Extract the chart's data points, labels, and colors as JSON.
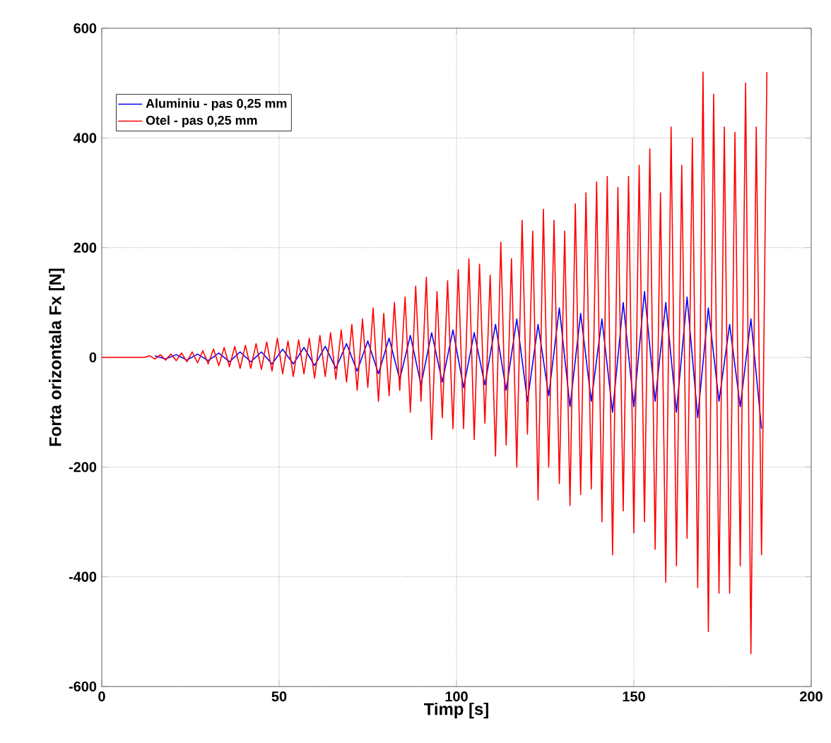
{
  "chart_data": {
    "type": "line",
    "xlabel": "Timp [s]",
    "ylabel": "Forta orizontala Fx [N]",
    "xlim": [
      0,
      200
    ],
    "ylim": [
      -600,
      600
    ],
    "xticks": [
      0,
      50,
      100,
      150,
      200
    ],
    "yticks": [
      -600,
      -400,
      -200,
      0,
      200,
      400,
      600
    ],
    "grid": true,
    "legend": "top left",
    "marker": "none",
    "line_style": "solid",
    "series": [
      {
        "name": "Aluminiu - pas 0,25 mm",
        "color": "#0000ff",
        "x": [
          15,
          18,
          21,
          24,
          27,
          30,
          33,
          36,
          39,
          42,
          45,
          48,
          51,
          54,
          57,
          60,
          63,
          66,
          69,
          72,
          75,
          78,
          81,
          84,
          87,
          90,
          93,
          96,
          99,
          102,
          105,
          108,
          111,
          114,
          117,
          120,
          123,
          126,
          129,
          132,
          135,
          138,
          141,
          144,
          147,
          150,
          153,
          156,
          159,
          162,
          165,
          168,
          171,
          174,
          177,
          180,
          183,
          186
        ],
        "values": [
          3,
          -3,
          5,
          -5,
          6,
          -6,
          8,
          -8,
          10,
          -8,
          10,
          -12,
          15,
          -12,
          18,
          -15,
          20,
          -20,
          25,
          -25,
          30,
          -30,
          35,
          -40,
          40,
          -50,
          45,
          -45,
          50,
          -55,
          45,
          -50,
          60,
          -60,
          70,
          -80,
          60,
          -70,
          90,
          -90,
          80,
          -80,
          70,
          -100,
          100,
          -90,
          120,
          -80,
          100,
          -100,
          110,
          -110,
          90,
          -80,
          60,
          -90,
          70,
          -130
        ]
      },
      {
        "name": "Otel - pas 0,25 mm",
        "color": "#ff0000",
        "x": [
          0,
          12,
          13.5,
          15,
          16.5,
          18,
          19.5,
          21,
          22.5,
          24,
          25.5,
          27,
          28.5,
          30,
          31.5,
          33,
          34.5,
          36,
          37.5,
          39,
          40.5,
          42,
          43.5,
          45,
          46.5,
          48,
          49.5,
          51,
          52.5,
          54,
          55.5,
          57,
          58.5,
          60,
          61.5,
          63,
          64.5,
          66,
          67.5,
          69,
          70.5,
          72,
          73.5,
          75,
          76.5,
          78,
          79.5,
          81,
          82.5,
          84,
          85.5,
          87,
          88.5,
          90,
          91.5,
          93,
          94.5,
          96,
          97.5,
          99,
          100.5,
          102,
          103.5,
          105,
          106.5,
          108,
          109.5,
          111,
          112.5,
          114,
          115.5,
          117,
          118.5,
          120,
          121.5,
          123,
          124.5,
          126,
          127.5,
          129,
          130.5,
          132,
          133.5,
          135,
          136.5,
          138,
          139.5,
          141,
          142.5,
          144,
          145.5,
          147,
          148.5,
          150,
          151.5,
          153,
          154.5,
          156,
          157.5,
          159,
          160.5,
          162,
          163.5,
          165,
          166.5,
          168,
          169.5,
          171,
          172.5,
          174,
          175.5,
          177,
          178.5,
          180,
          181.5,
          183,
          184.5,
          186,
          187.5
        ],
        "values": [
          0,
          0,
          3,
          -3,
          5,
          -5,
          6,
          -6,
          8,
          -8,
          10,
          -10,
          12,
          -12,
          15,
          -15,
          18,
          -17,
          20,
          -20,
          22,
          -20,
          25,
          -22,
          28,
          -25,
          35,
          -30,
          30,
          -35,
          32,
          -30,
          35,
          -38,
          40,
          -35,
          45,
          -40,
          50,
          -45,
          60,
          -60,
          70,
          -55,
          90,
          -80,
          80,
          -70,
          100,
          -60,
          110,
          -100,
          130,
          -80,
          146,
          -150,
          120,
          -110,
          140,
          -130,
          160,
          -130,
          180,
          -150,
          170,
          -120,
          150,
          -180,
          210,
          -160,
          180,
          -200,
          250,
          -140,
          230,
          -260,
          270,
          -200,
          250,
          -230,
          230,
          -270,
          280,
          -250,
          300,
          -240,
          320,
          -300,
          330,
          -360,
          310,
          -280,
          330,
          -320,
          350,
          -300,
          380,
          -350,
          300,
          -410,
          420,
          -380,
          350,
          -330,
          400,
          -420,
          520,
          -500,
          480,
          -430,
          420,
          -430,
          410,
          -380,
          500,
          -540,
          420,
          -360,
          520
        ]
      }
    ]
  }
}
